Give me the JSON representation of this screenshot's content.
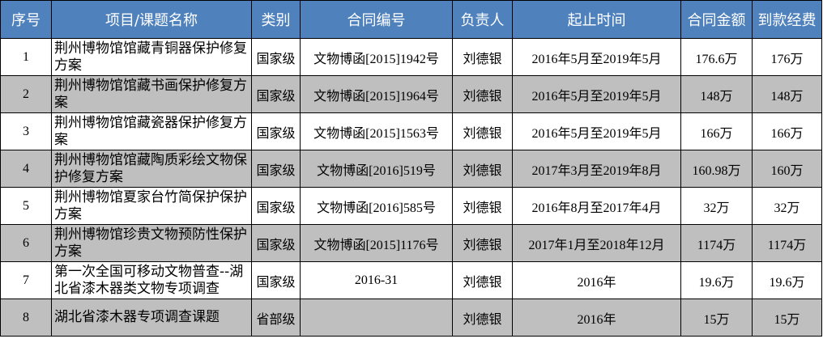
{
  "table": {
    "header": [
      "序号",
      "项目/课题名称",
      "类别",
      "合同编号",
      "负责人",
      "起止时间",
      "合同金额",
      "到款经费"
    ],
    "rows": [
      [
        "1",
        "荆州博物馆馆藏青铜器保护修复方案",
        "国家级",
        "文物博函[2015]1942号",
        "刘德银",
        "2016年5月至2019年5月",
        "176.6万",
        "176万"
      ],
      [
        "2",
        "荆州博物馆馆藏书画保护修复方案",
        "国家级",
        "文物博函[2015]1964号",
        "刘德银",
        "2016年5月至2019年5月",
        "148万",
        "148万"
      ],
      [
        "3",
        "荆州博物馆馆藏瓷器保护修复方案",
        "国家级",
        "文物博函[2015]1563号",
        "刘德银",
        "2016年5月至2019年5月",
        "166万",
        "166万"
      ],
      [
        "4",
        "荆州博物馆馆藏陶质彩绘文物保护修复方案",
        "国家级",
        "文物博函[2016]519号",
        "刘德银",
        "2017年3月至2019年8月",
        "160.98万",
        "160万"
      ],
      [
        "5",
        "荆州博物馆夏家台竹简保护保护方案",
        "国家级",
        "文物博函[2016]585号",
        "刘德银",
        "2016年8月至2017年4月",
        "32万",
        "32万"
      ],
      [
        "6",
        "荆州博物馆珍贵文物预防性保护方案",
        "国家级",
        "文物博函[2015]1176号",
        "刘德银",
        "2017年1月至2018年12月",
        "1174万",
        "1174万"
      ],
      [
        "7",
        "第一次全国可移动文物普查--湖北省漆木器类文物专项调查",
        "国家级",
        "2016-31",
        "刘德银",
        "2016年",
        "19.6万",
        "19.6万"
      ],
      [
        "8",
        "湖北省漆木器专项调查课题",
        "省部级",
        null,
        "刘德银",
        "2016年",
        "15万",
        "15万"
      ]
    ]
  }
}
